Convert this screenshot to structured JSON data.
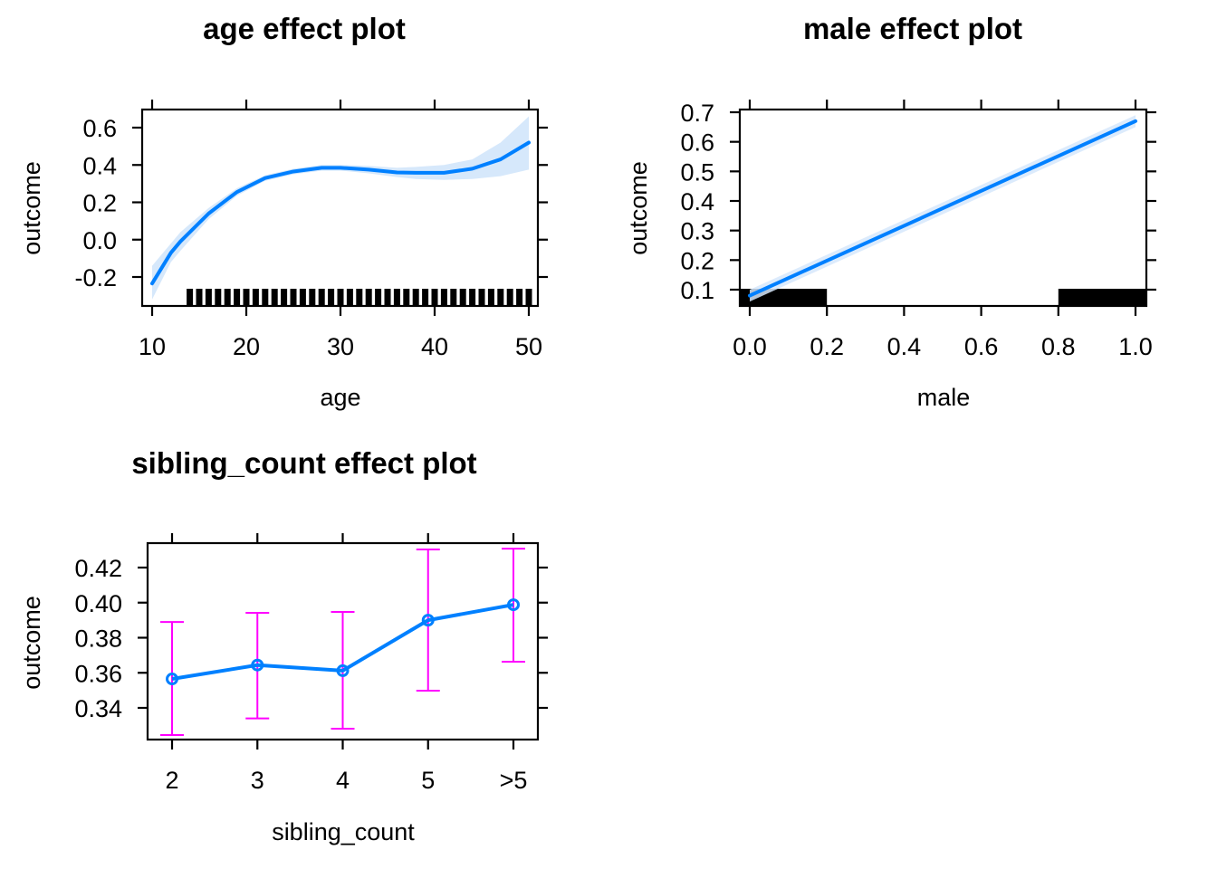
{
  "colors": {
    "line": "#0080ff",
    "band": "#d6e8fb",
    "errorbar": "#ff00ff",
    "rug": "#000000",
    "axis": "#000000",
    "background": "#ffffff"
  },
  "chart_data": [
    {
      "id": "age",
      "type": "line",
      "title": "age effect plot",
      "xlabel": "age",
      "ylabel": "outcome",
      "xlim": [
        8.8,
        51
      ],
      "ylim": [
        -0.36,
        0.71
      ],
      "xticks": [
        10,
        20,
        30,
        40,
        50
      ],
      "xtick_labels": [
        "10",
        "20",
        "30",
        "40",
        "50"
      ],
      "yticks": [
        -0.2,
        0.0,
        0.2,
        0.4,
        0.6
      ],
      "ytick_labels": [
        "-0.2",
        "0.0",
        "0.2",
        "0.4",
        "0.6"
      ],
      "grid": false,
      "x": [
        10,
        12,
        13,
        16,
        19,
        22,
        25,
        28,
        30,
        33,
        36,
        38,
        41,
        44,
        47,
        50
      ],
      "fit": [
        -0.235,
        -0.07,
        -0.01,
        0.14,
        0.255,
        0.33,
        0.365,
        0.385,
        0.385,
        0.375,
        0.36,
        0.358,
        0.358,
        0.38,
        0.43,
        0.52
      ],
      "lower": [
        -0.32,
        -0.12,
        -0.06,
        0.11,
        0.235,
        0.315,
        0.35,
        0.37,
        0.37,
        0.355,
        0.335,
        0.325,
        0.32,
        0.325,
        0.34,
        0.375
      ],
      "upper": [
        -0.14,
        -0.02,
        0.04,
        0.17,
        0.275,
        0.345,
        0.38,
        0.4,
        0.4,
        0.395,
        0.385,
        0.39,
        0.4,
        0.43,
        0.52,
        0.66
      ],
      "rug": [
        14,
        15,
        16,
        17,
        18,
        19,
        20,
        21,
        22,
        23,
        24,
        25,
        26,
        27,
        28,
        29,
        30,
        31,
        32,
        33,
        34,
        35,
        36,
        37,
        38,
        39,
        40,
        41,
        42,
        43,
        44,
        45,
        46,
        47,
        48,
        49,
        50
      ]
    },
    {
      "id": "male",
      "type": "line",
      "title": "male effect plot",
      "xlabel": "male",
      "ylabel": "outcome",
      "xlim": [
        -0.026,
        1.026
      ],
      "ylim": [
        0.045,
        0.705
      ],
      "xticks": [
        0.0,
        0.2,
        0.4,
        0.6,
        0.8,
        1.0
      ],
      "xtick_labels": [
        "0.0",
        "0.2",
        "0.4",
        "0.6",
        "0.8",
        "1.0"
      ],
      "yticks": [
        0.1,
        0.2,
        0.3,
        0.4,
        0.5,
        0.6,
        0.7
      ],
      "ytick_labels": [
        "0.1",
        "0.2",
        "0.3",
        "0.4",
        "0.5",
        "0.6",
        "0.7"
      ],
      "grid": false,
      "x": [
        0.0,
        1.0
      ],
      "fit": [
        0.08,
        0.67
      ],
      "lower": [
        0.06,
        0.65
      ],
      "upper": [
        0.1,
        0.69
      ],
      "rug_bars": [
        [
          -0.026,
          0.2
        ],
        [
          0.8,
          1.026
        ]
      ]
    },
    {
      "id": "sibling_count",
      "type": "line",
      "title": "sibling_count effect plot",
      "xlabel": "sibling_count",
      "ylabel": "outcome",
      "categories": [
        "2",
        "3",
        "4",
        "5",
        ">5"
      ],
      "ylim": [
        0.3227,
        0.4347
      ],
      "yticks": [
        0.34,
        0.36,
        0.38,
        0.4,
        0.42
      ],
      "ytick_labels": [
        "0.34",
        "0.36",
        "0.38",
        "0.40",
        "0.42"
      ],
      "grid": false,
      "values": [
        0.3565,
        0.3644,
        0.3612,
        0.39,
        0.3988
      ],
      "lower": [
        0.3245,
        0.334,
        0.3281,
        0.3498,
        0.3663
      ],
      "upper": [
        0.389,
        0.3942,
        0.3947,
        0.4303,
        0.4308
      ]
    }
  ]
}
